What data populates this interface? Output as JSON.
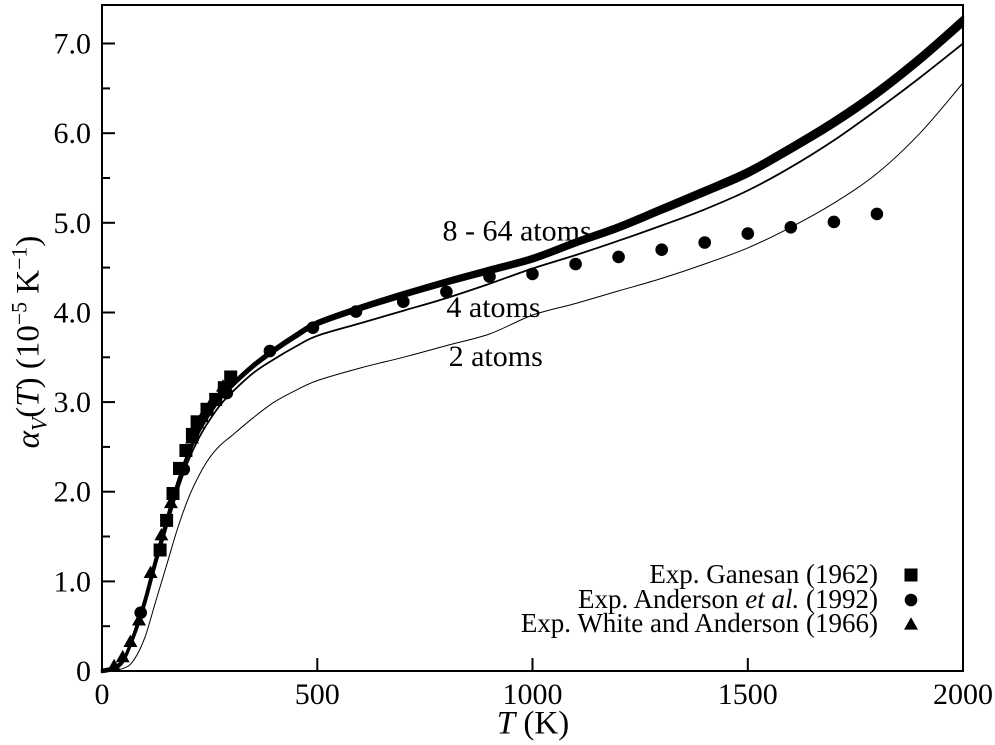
{
  "colors": {
    "ink": "#000000",
    "background": "#ffffff"
  },
  "chart_data": {
    "type": "line",
    "title": "",
    "xlabel_segments": [
      {
        "text": "T",
        "italic": true
      },
      {
        "text": " (K)"
      }
    ],
    "ylabel_segments": [
      {
        "text": "α",
        "italic": true
      },
      {
        "text": "V",
        "italic": true,
        "script": "sub"
      },
      {
        "text": "("
      },
      {
        "text": "T",
        "italic": true
      },
      {
        "text": ") (10"
      },
      {
        "text": "−5",
        "script": "sup"
      },
      {
        "text": " K"
      },
      {
        "text": "−1",
        "script": "sup"
      },
      {
        "text": ")"
      }
    ],
    "xlim": [
      0,
      2000
    ],
    "ylim": [
      0,
      7.43
    ],
    "grid": false,
    "x_ticks": [
      {
        "v": 0,
        "label": "0"
      },
      {
        "v": 500,
        "label": "500"
      },
      {
        "v": 1000,
        "label": "1000"
      },
      {
        "v": 1500,
        "label": "1500"
      },
      {
        "v": 2000,
        "label": "2000"
      }
    ],
    "y_ticks": [
      {
        "v": 0,
        "label": "0"
      },
      {
        "v": 1,
        "label": "1.0"
      },
      {
        "v": 2,
        "label": "2.0"
      },
      {
        "v": 3,
        "label": "3.0"
      },
      {
        "v": 4,
        "label": "4.0"
      },
      {
        "v": 5,
        "label": "5.0"
      },
      {
        "v": 6,
        "label": "6.0"
      },
      {
        "v": 7,
        "label": "7.0"
      }
    ],
    "y_minor_step": 0.5,
    "series": [
      {
        "name": "8 - 64 atoms",
        "type": "line",
        "style": "bundle",
        "bundle_offsets": [
          -0.05,
          -0.025,
          0,
          0.025,
          0.05
        ],
        "line_width": 2.4,
        "x": [
          0,
          25,
          50,
          75,
          100,
          125,
          150,
          175,
          200,
          225,
          250,
          275,
          300,
          350,
          400,
          450,
          500,
          600,
          700,
          800,
          900,
          1000,
          1100,
          1200,
          1300,
          1400,
          1500,
          1600,
          1700,
          1800,
          1900,
          2000
        ],
        "y": [
          0,
          0.03,
          0.12,
          0.42,
          0.8,
          1.25,
          1.68,
          2.08,
          2.42,
          2.68,
          2.88,
          3.05,
          3.18,
          3.4,
          3.58,
          3.74,
          3.88,
          4.05,
          4.2,
          4.34,
          4.47,
          4.6,
          4.78,
          4.95,
          5.15,
          5.35,
          5.56,
          5.83,
          6.12,
          6.45,
          6.83,
          7.25
        ],
        "annotation": {
          "text": "8 - 64 atoms",
          "t": 791,
          "a": 4.8
        }
      },
      {
        "name": "4 atoms",
        "type": "line",
        "style": "single",
        "line_width": 1.8,
        "x": [
          0,
          25,
          50,
          75,
          100,
          125,
          150,
          175,
          200,
          225,
          250,
          275,
          300,
          350,
          400,
          450,
          500,
          600,
          700,
          800,
          900,
          1000,
          1100,
          1200,
          1300,
          1400,
          1500,
          1600,
          1700,
          1800,
          1900,
          2000
        ],
        "y": [
          0,
          0.03,
          0.11,
          0.38,
          0.74,
          1.18,
          1.6,
          2.0,
          2.34,
          2.6,
          2.8,
          2.97,
          3.1,
          3.32,
          3.48,
          3.62,
          3.74,
          3.88,
          4.02,
          4.16,
          4.32,
          4.49,
          4.64,
          4.8,
          4.97,
          5.15,
          5.36,
          5.62,
          5.92,
          6.26,
          6.62,
          7.0
        ],
        "annotation": {
          "text": "4 atoms",
          "t": 800,
          "a": 3.95
        }
      },
      {
        "name": "2 atoms",
        "type": "line",
        "style": "single",
        "line_width": 1.0,
        "x": [
          0,
          50,
          75,
          100,
          125,
          150,
          175,
          200,
          225,
          250,
          275,
          300,
          350,
          400,
          450,
          500,
          600,
          700,
          800,
          900,
          1000,
          1100,
          1200,
          1300,
          1400,
          1500,
          1600,
          1700,
          1800,
          1900,
          2000
        ],
        "y": [
          0,
          0.03,
          0.13,
          0.38,
          0.78,
          1.18,
          1.58,
          1.92,
          2.18,
          2.38,
          2.52,
          2.62,
          2.82,
          3.0,
          3.13,
          3.24,
          3.38,
          3.5,
          3.63,
          3.76,
          3.97,
          4.1,
          4.24,
          4.38,
          4.54,
          4.72,
          4.95,
          5.22,
          5.55,
          6.0,
          6.56
        ],
        "annotation": {
          "text": "2 atoms",
          "t": 805,
          "a": 3.4
        }
      },
      {
        "name": "Exp. Ganesan (1962)",
        "type": "scatter",
        "marker": "square",
        "x": [
          135,
          150,
          165,
          180,
          195,
          210,
          221,
          244,
          264,
          284,
          299
        ],
        "y": [
          1.35,
          1.68,
          1.98,
          2.26,
          2.46,
          2.64,
          2.78,
          2.92,
          3.03,
          3.16,
          3.28
        ]
      },
      {
        "name": "Exp. Anderson et al. (1992)",
        "type": "scatter",
        "marker": "circle",
        "x": [
          90,
          190,
          290,
          390,
          490,
          590,
          700,
          800,
          900,
          1000,
          1100,
          1200,
          1300,
          1400,
          1500,
          1600,
          1700,
          1800
        ],
        "y": [
          0.65,
          2.25,
          3.1,
          3.57,
          3.83,
          4.01,
          4.12,
          4.23,
          4.4,
          4.43,
          4.54,
          4.62,
          4.7,
          4.78,
          4.88,
          4.95,
          5.01,
          5.1
        ]
      },
      {
        "name": "Exp. White and Anderson (1966)",
        "type": "scatter",
        "marker": "triangle",
        "x": [
          28,
          48,
          66,
          86,
          113,
          138,
          160,
          184,
          209,
          233,
          257,
          281
        ],
        "y": [
          0.06,
          0.16,
          0.33,
          0.57,
          1.1,
          1.52,
          1.88,
          2.25,
          2.6,
          2.84,
          3.02,
          3.18
        ]
      }
    ],
    "legend": {
      "position": "bottom-right",
      "rows": [
        {
          "marker": "square",
          "segments": [
            {
              "text": "Exp. Ganesan (1962)"
            }
          ]
        },
        {
          "marker": "circle",
          "segments": [
            {
              "text": "Exp. Anderson "
            },
            {
              "text": "et al.",
              "italic": true
            },
            {
              "text": " (1992)"
            }
          ]
        },
        {
          "marker": "triangle",
          "segments": [
            {
              "text": "Exp. White and Anderson (1966)"
            }
          ]
        }
      ]
    }
  }
}
